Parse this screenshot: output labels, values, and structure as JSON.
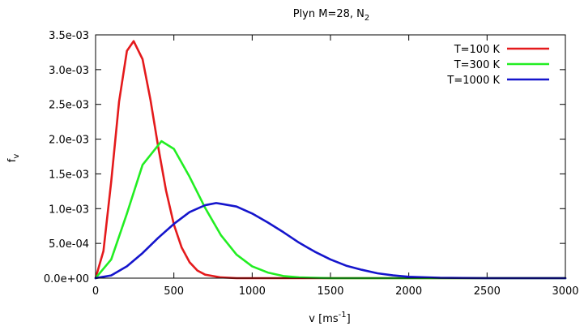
{
  "chart_data": {
    "type": "line",
    "title": {
      "text": "Plyn M=28, N",
      "sub": "2"
    },
    "xlabel": {
      "text": "v [ms",
      "sup": "-1",
      "suffix": "]"
    },
    "ylabel": {
      "text": "f",
      "sub": "v"
    },
    "xlim": [
      0,
      3000
    ],
    "ylim": [
      0,
      0.0035
    ],
    "x_ticks": [
      0,
      500,
      1000,
      1500,
      2000,
      2500,
      3000
    ],
    "x_tick_labels": [
      "0",
      "500",
      "1000",
      "1500",
      "2000",
      "2500",
      "3000"
    ],
    "y_ticks": [
      0,
      0.0005,
      0.001,
      0.0015,
      0.002,
      0.0025,
      0.003,
      0.0035
    ],
    "y_tick_labels": [
      "0.0e+00",
      "5.0e-04",
      "1.0e-03",
      "1.5e-03",
      "2.0e-03",
      "2.5e-03",
      "3.0e-03",
      "3.5e-03"
    ],
    "grid": false,
    "legend_position": "top-right",
    "series": [
      {
        "name": "T=100 K",
        "color": "#e41a1c",
        "points": [
          [
            0,
            0
          ],
          [
            50,
            0.00039
          ],
          [
            100,
            0.00139
          ],
          [
            150,
            0.00254
          ],
          [
            200,
            0.00327
          ],
          [
            243,
            0.00341
          ],
          [
            300,
            0.00315
          ],
          [
            350,
            0.00257
          ],
          [
            400,
            0.00189
          ],
          [
            450,
            0.00126
          ],
          [
            500,
            0.00077
          ],
          [
            550,
            0.00044
          ],
          [
            600,
            0.00023
          ],
          [
            650,
            0.00011
          ],
          [
            700,
            5e-05
          ],
          [
            800,
            1e-05
          ],
          [
            900,
            0
          ],
          [
            1000,
            0
          ],
          [
            3000,
            0
          ]
        ]
      },
      {
        "name": "T=300 K",
        "color": "#22ee22",
        "points": [
          [
            0,
            0
          ],
          [
            100,
            0.00027
          ],
          [
            200,
            0.00093
          ],
          [
            300,
            0.00163
          ],
          [
            421,
            0.00197
          ],
          [
            500,
            0.00186
          ],
          [
            600,
            0.00146
          ],
          [
            700,
            0.00101
          ],
          [
            800,
            0.00062
          ],
          [
            900,
            0.00034
          ],
          [
            1000,
            0.00017
          ],
          [
            1100,
            8e-05
          ],
          [
            1200,
            3e-05
          ],
          [
            1300,
            1e-05
          ],
          [
            1500,
            0
          ],
          [
            3000,
            0
          ]
        ]
      },
      {
        "name": "T=1000 K",
        "color": "#1515cc",
        "points": [
          [
            0,
            0
          ],
          [
            100,
            4e-05
          ],
          [
            200,
            0.00017
          ],
          [
            300,
            0.00036
          ],
          [
            400,
            0.00058
          ],
          [
            500,
            0.00078
          ],
          [
            600,
            0.00095
          ],
          [
            700,
            0.00105
          ],
          [
            770,
            0.00108
          ],
          [
            800,
            0.00107
          ],
          [
            900,
            0.00103
          ],
          [
            1000,
            0.00093
          ],
          [
            1100,
            0.0008
          ],
          [
            1200,
            0.00066
          ],
          [
            1300,
            0.00051
          ],
          [
            1400,
            0.00038
          ],
          [
            1500,
            0.00027
          ],
          [
            1600,
            0.00018
          ],
          [
            1700,
            0.00012
          ],
          [
            1800,
            7e-05
          ],
          [
            1900,
            4e-05
          ],
          [
            2000,
            2e-05
          ],
          [
            2200,
            5e-06
          ],
          [
            2500,
            0
          ],
          [
            3000,
            0
          ]
        ]
      }
    ]
  }
}
